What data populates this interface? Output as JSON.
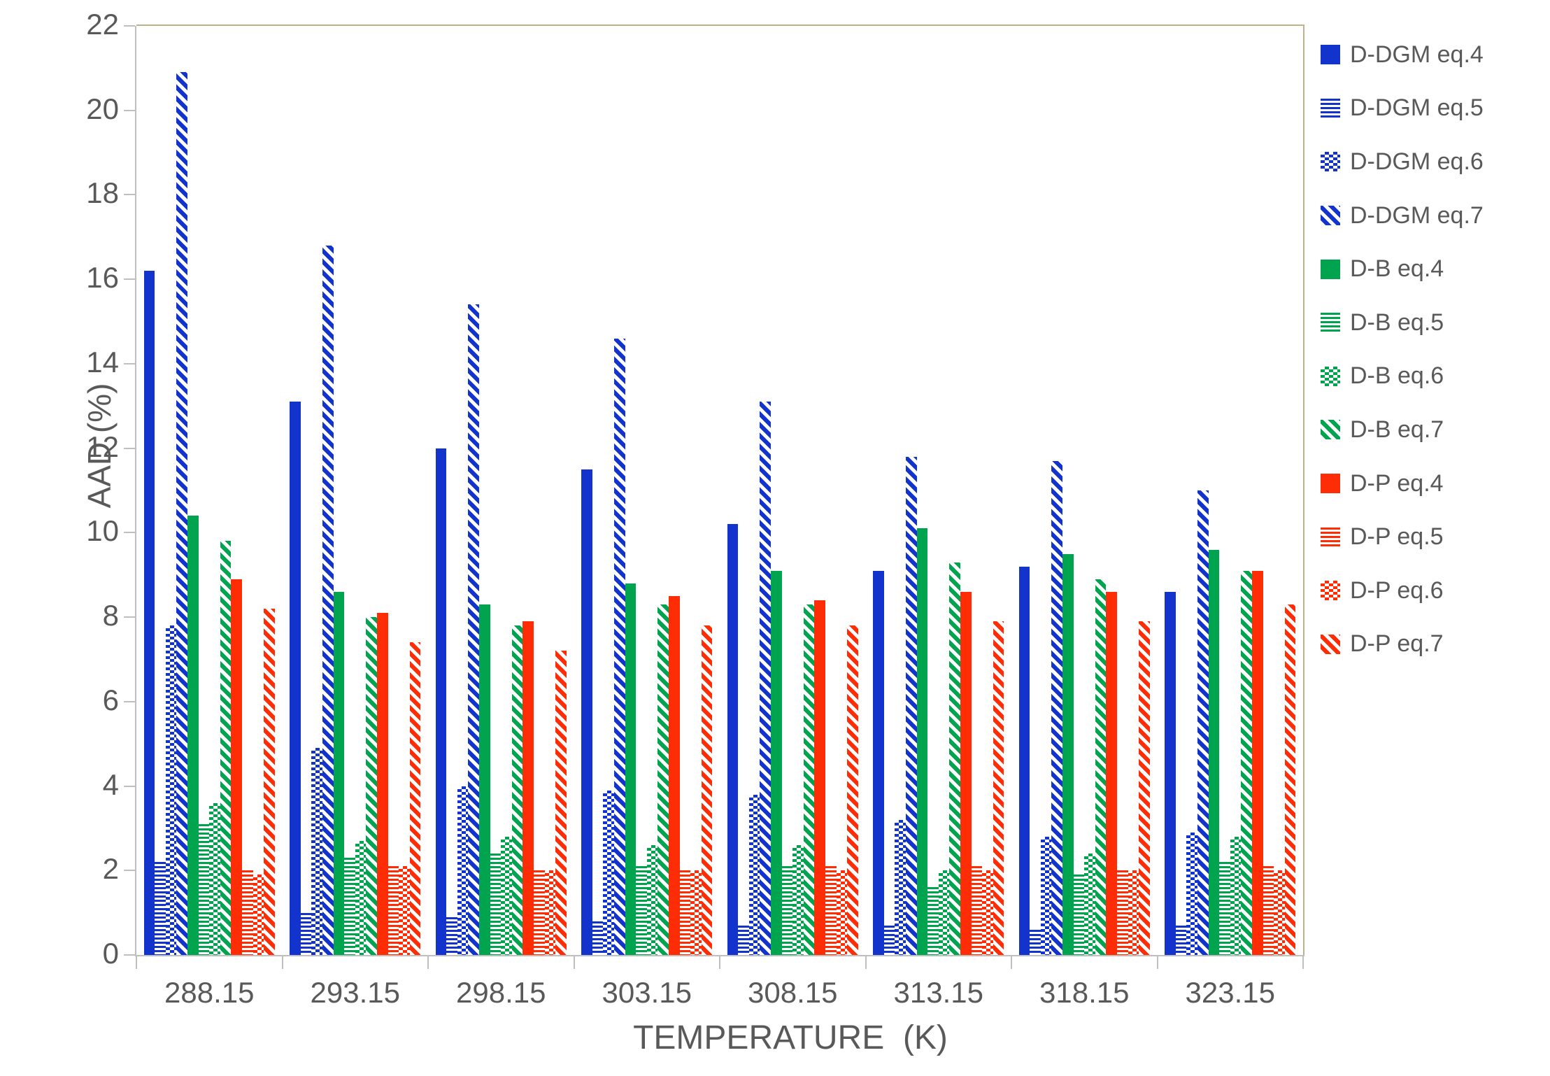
{
  "chart_data": {
    "type": "bar",
    "title": "",
    "xlabel": "TEMPERATURE  (K)",
    "ylabel": "AAD (%)",
    "ylim": [
      0,
      22
    ],
    "ytick_step": 2,
    "yticks": [
      "0",
      "2",
      "4",
      "6",
      "8",
      "10",
      "12",
      "14",
      "16",
      "18",
      "20",
      "22"
    ],
    "grid": false,
    "legend_position": "right",
    "categories": [
      "288.15",
      "293.15",
      "298.15",
      "303.15",
      "308.15",
      "313.15",
      "318.15",
      "323.15"
    ],
    "series": [
      {
        "name": "D-DGM eq.4",
        "color": "#1233cc",
        "pattern": "solid",
        "values": [
          16.2,
          13.1,
          12.0,
          11.5,
          10.2,
          9.1,
          9.2,
          8.6
        ]
      },
      {
        "name": "D-DGM eq.5",
        "color": "#1233cc",
        "pattern": "hstripe",
        "values": [
          2.2,
          1.0,
          0.9,
          0.8,
          0.7,
          0.7,
          0.6,
          0.7
        ]
      },
      {
        "name": "D-DGM eq.6",
        "color": "#1233cc",
        "pattern": "check",
        "values": [
          7.8,
          4.9,
          4.0,
          3.9,
          3.8,
          3.2,
          2.8,
          2.9
        ]
      },
      {
        "name": "D-DGM eq.7",
        "color": "#1233cc",
        "pattern": "dstripe",
        "values": [
          20.9,
          16.8,
          15.4,
          14.6,
          13.1,
          11.8,
          11.7,
          11.0
        ]
      },
      {
        "name": "D-B eq.4",
        "color": "#00a44e",
        "pattern": "solid",
        "values": [
          10.4,
          8.6,
          8.3,
          8.8,
          9.1,
          10.1,
          9.5,
          9.6
        ]
      },
      {
        "name": "D-B eq.5",
        "color": "#00a44e",
        "pattern": "hstripe",
        "values": [
          3.1,
          2.3,
          2.4,
          2.1,
          2.1,
          1.6,
          1.9,
          2.2
        ]
      },
      {
        "name": "D-B eq.6",
        "color": "#00a44e",
        "pattern": "check",
        "values": [
          3.6,
          2.7,
          2.8,
          2.6,
          2.6,
          2.0,
          2.4,
          2.8
        ]
      },
      {
        "name": "D-B eq.7",
        "color": "#00a44e",
        "pattern": "dstripe",
        "values": [
          9.8,
          8.0,
          7.8,
          8.3,
          8.3,
          9.3,
          8.9,
          9.1
        ]
      },
      {
        "name": "D-P eq.4",
        "color": "#ff2d05",
        "pattern": "solid",
        "values": [
          8.9,
          8.1,
          7.9,
          8.5,
          8.4,
          8.6,
          8.6,
          9.1
        ]
      },
      {
        "name": "D-P eq.5",
        "color": "#ff2d05",
        "pattern": "hstripe",
        "values": [
          2.0,
          2.1,
          2.0,
          2.0,
          2.1,
          2.1,
          2.0,
          2.1
        ]
      },
      {
        "name": "D-P eq.6",
        "color": "#ff2d05",
        "pattern": "check",
        "values": [
          1.9,
          2.1,
          2.0,
          2.0,
          2.0,
          2.0,
          2.0,
          2.0
        ]
      },
      {
        "name": "D-P eq.7",
        "color": "#ff2d05",
        "pattern": "dstripe",
        "values": [
          8.2,
          7.4,
          7.2,
          7.8,
          7.8,
          7.9,
          7.9,
          8.3
        ]
      }
    ]
  },
  "colors": {
    "series_blue": "#1233cc",
    "series_green": "#00a44e",
    "series_red": "#ff2d05",
    "axis": "#bfbfbf",
    "frame": "#bdb28a",
    "text": "#595959",
    "background": "#ffffff"
  }
}
